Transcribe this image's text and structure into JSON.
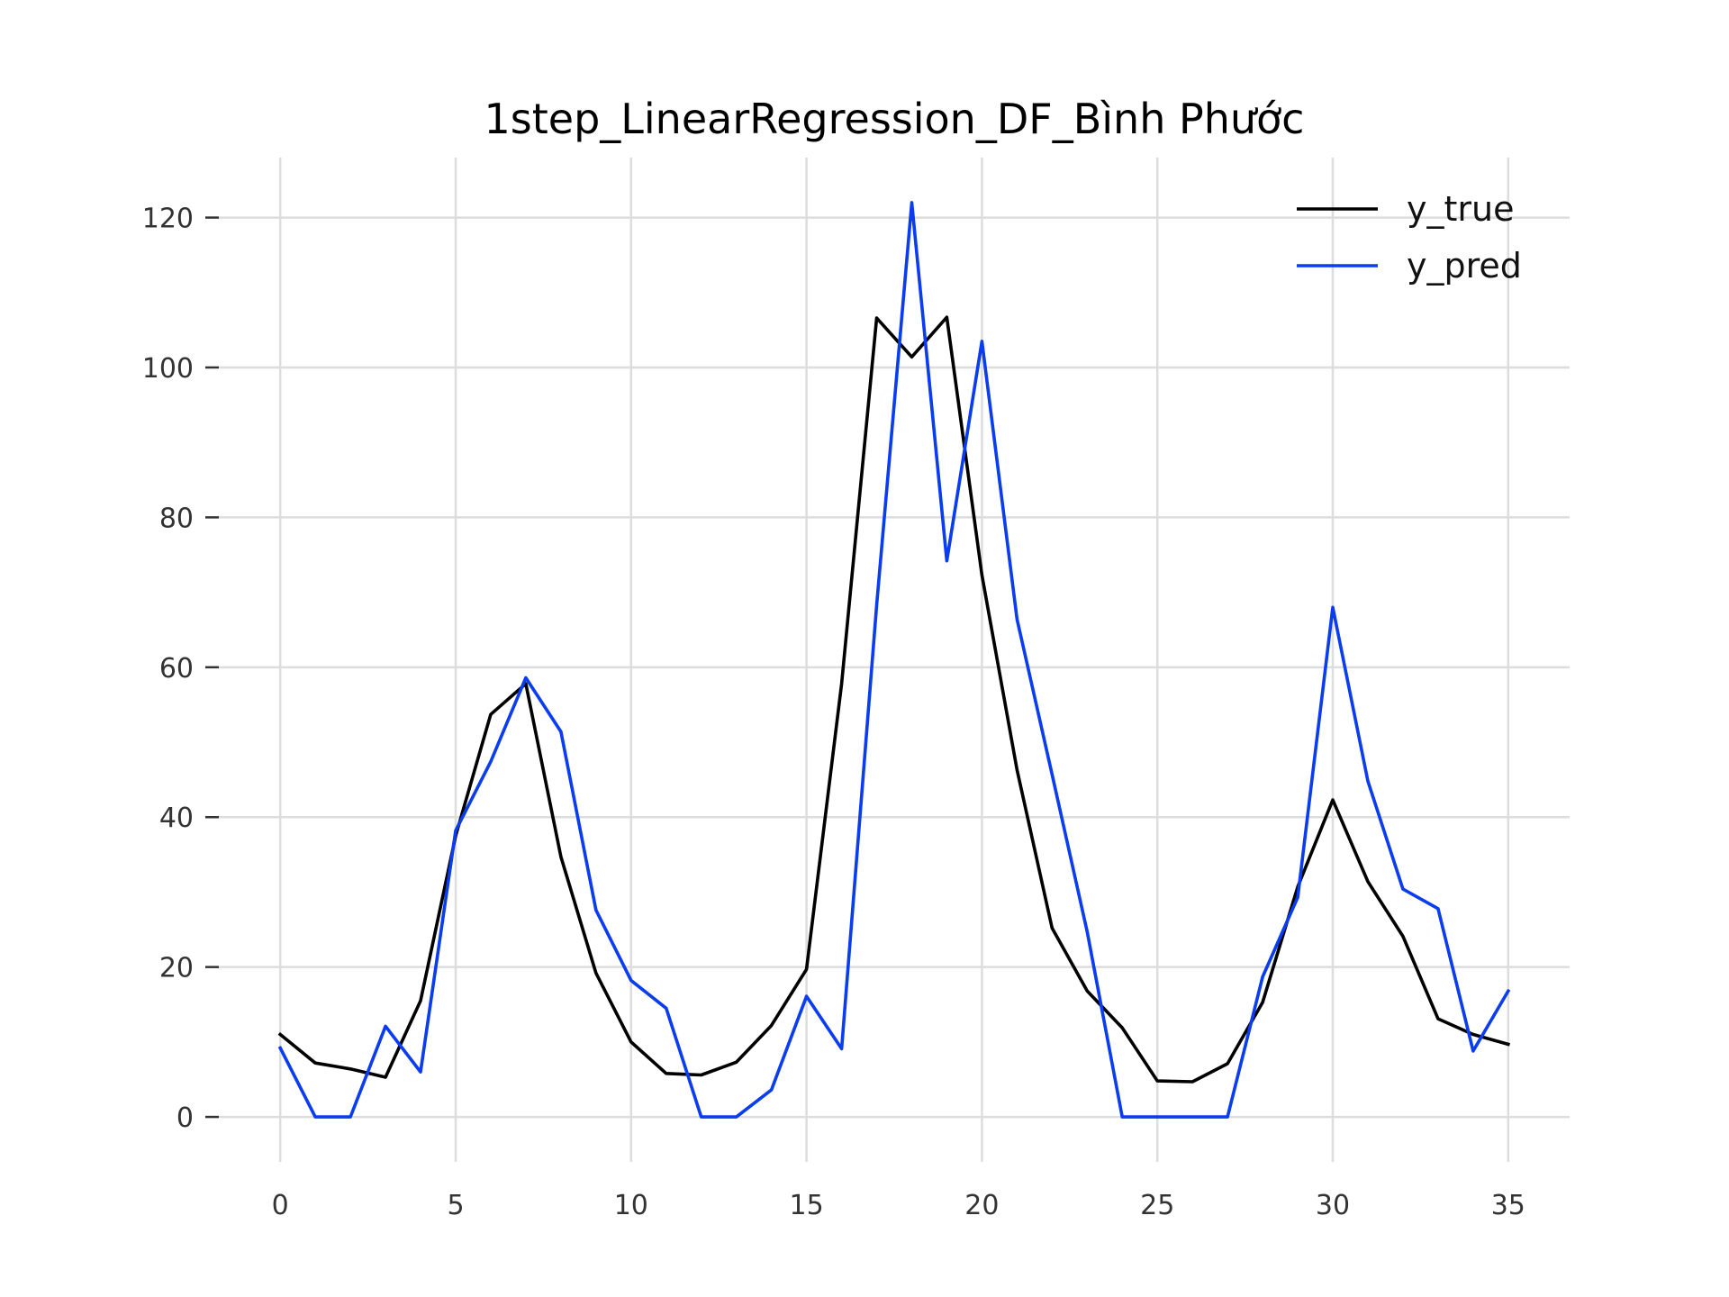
{
  "chart_data": {
    "type": "line",
    "title": "1step_LinearRegression_DF_Bình Phước",
    "xlabel": "",
    "ylabel": "",
    "xlim": [
      -1.75,
      36.75
    ],
    "ylim": [
      -6,
      128
    ],
    "x_ticks": [
      0,
      5,
      10,
      15,
      20,
      25,
      30,
      35
    ],
    "y_ticks": [
      0,
      20,
      40,
      60,
      80,
      100,
      120
    ],
    "grid": true,
    "legend_position": "top-right",
    "x": [
      0,
      1,
      2,
      3,
      4,
      5,
      6,
      7,
      8,
      9,
      10,
      11,
      12,
      13,
      14,
      15,
      16,
      17,
      18,
      19,
      20,
      21,
      22,
      23,
      24,
      25,
      26,
      27,
      28,
      29,
      30,
      31,
      32,
      33,
      34,
      35
    ],
    "series": [
      {
        "name": "y_true",
        "color": "#000000",
        "values": [
          11.0,
          7.2,
          6.4,
          5.3,
          15.5,
          37.5,
          53.7,
          57.8,
          34.7,
          19.2,
          10.0,
          5.8,
          5.6,
          7.3,
          12.2,
          19.7,
          57.8,
          106.6,
          101.4,
          106.7,
          72.3,
          46.3,
          25.2,
          16.8,
          11.9,
          4.8,
          4.7,
          7.1,
          15.3,
          30.7,
          42.3,
          31.4,
          24.1,
          13.1,
          11.0,
          9.7
        ]
      },
      {
        "name": "y_pred",
        "color": "#0a3cf0",
        "values": [
          9.2,
          0.0,
          0.0,
          12.1,
          6.0,
          38.2,
          47.4,
          58.6,
          51.4,
          27.6,
          18.2,
          14.5,
          0.0,
          0.0,
          3.6,
          16.1,
          9.1,
          68.3,
          122.0,
          74.2,
          103.5,
          66.4,
          45.7,
          24.7,
          0.0,
          0.0,
          0.0,
          0.0,
          18.7,
          29.3,
          68.0,
          44.8,
          30.4,
          27.8,
          8.8,
          16.8
        ]
      }
    ]
  }
}
